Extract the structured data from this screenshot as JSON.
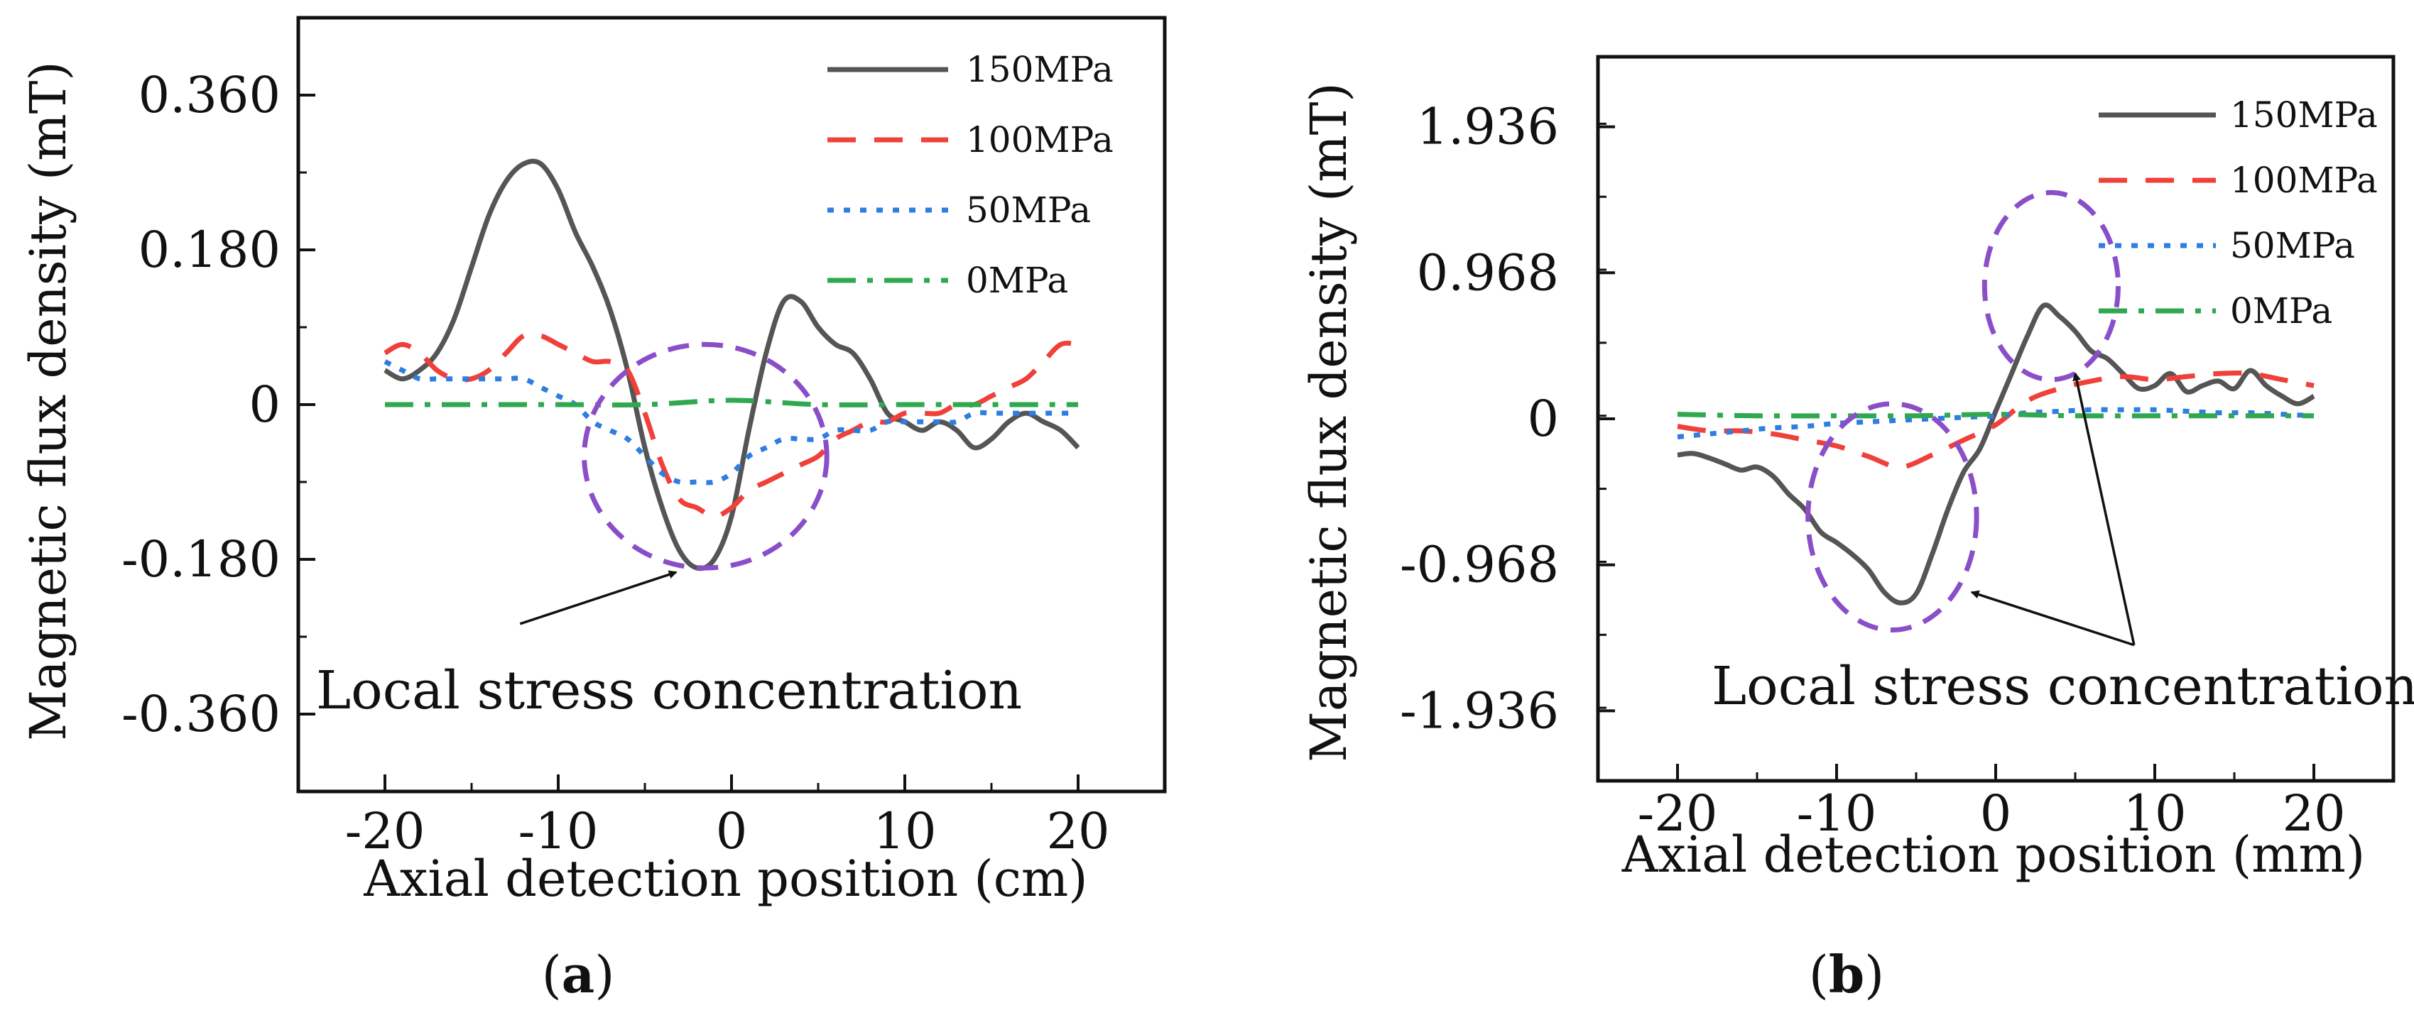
{
  "panels": [
    {
      "tag_open": "(",
      "tag_letter": "a",
      "tag_close": ")",
      "annotation": "Local stress concentration"
    },
    {
      "tag_open": "(",
      "tag_letter": "b",
      "tag_close": ")",
      "annotation": "Local stress concentration"
    }
  ],
  "colors": {
    "150MPa": "#555555",
    "100MPa": "#f0403a",
    "50MPa": "#2f7de1",
    "0MPa": "#2fa84f",
    "circle": "#8a4fc8"
  },
  "chart_data": [
    {
      "type": "line",
      "title": "",
      "xlabel": "Axial detection position (cm)",
      "ylabel": "Magnetic flux density (mT)",
      "xlim": [
        -25,
        25
      ],
      "ylim": [
        -0.45,
        0.45
      ],
      "xticks": [
        -20,
        -10,
        0,
        10,
        20
      ],
      "xtick_labels": [
        "-20",
        "-10",
        "0",
        "10",
        "20"
      ],
      "yticks": [
        0.36,
        0.18,
        0,
        -0.18,
        -0.36
      ],
      "ytick_labels": [
        "0.360",
        "0.180",
        "0",
        "-0.180",
        "-0.360"
      ],
      "grid": false,
      "legend": "top-right",
      "annotation_circle": {
        "center": [
          -1.5,
          -0.06
        ],
        "radius_x": 7,
        "radius_y": 0.13
      },
      "annotation_arrow": {
        "from": [
          -12.2,
          -0.255
        ],
        "to": [
          -3.2,
          -0.195
        ]
      },
      "series": [
        {
          "name": "150MPa",
          "style": "solid",
          "x": [
            -20,
            -19,
            -18,
            -17,
            -16,
            -15,
            -14,
            -13,
            -12,
            -11,
            -10,
            -9,
            -8,
            -7,
            -6,
            -5,
            -4,
            -3,
            -2,
            -1,
            0,
            1,
            2,
            3,
            4,
            5,
            6,
            7,
            8,
            9,
            10,
            11,
            12,
            13,
            14,
            15,
            16,
            17,
            18,
            19,
            20
          ],
          "y": [
            0.04,
            0.03,
            0.04,
            0.06,
            0.1,
            0.16,
            0.22,
            0.26,
            0.28,
            0.28,
            0.25,
            0.2,
            0.16,
            0.11,
            0.04,
            -0.05,
            -0.12,
            -0.17,
            -0.19,
            -0.18,
            -0.13,
            -0.03,
            0.06,
            0.12,
            0.12,
            0.09,
            0.07,
            0.06,
            0.03,
            -0.01,
            -0.02,
            -0.03,
            -0.02,
            -0.03,
            -0.05,
            -0.04,
            -0.02,
            -0.01,
            -0.02,
            -0.03,
            -0.05
          ]
        },
        {
          "name": "100MPa",
          "style": "dashed",
          "x": [
            -20,
            -19,
            -18,
            -17,
            -16,
            -15,
            -14,
            -13,
            -12,
            -11,
            -10,
            -9,
            -8,
            -7,
            -6,
            -5,
            -4,
            -3,
            -2,
            -1,
            0,
            1,
            2,
            3,
            4,
            5,
            6,
            7,
            8,
            9,
            10,
            11,
            12,
            13,
            14,
            15,
            16,
            17,
            18,
            19,
            20
          ],
          "y": [
            0.06,
            0.07,
            0.06,
            0.04,
            0.03,
            0.03,
            0.04,
            0.06,
            0.08,
            0.08,
            0.07,
            0.06,
            0.05,
            0.05,
            0.04,
            -0.01,
            -0.07,
            -0.11,
            -0.12,
            -0.13,
            -0.12,
            -0.1,
            -0.09,
            -0.08,
            -0.07,
            -0.06,
            -0.04,
            -0.03,
            -0.02,
            -0.02,
            -0.01,
            -0.01,
            -0.01,
            0.0,
            0.0,
            0.01,
            0.02,
            0.03,
            0.05,
            0.07,
            0.07
          ]
        },
        {
          "name": "50MPa",
          "style": "dotted",
          "x": [
            -20,
            -19,
            -18,
            -17,
            -16,
            -15,
            -14,
            -13,
            -12,
            -11,
            -10,
            -9,
            -8,
            -7,
            -6,
            -5,
            -4,
            -3,
            -2,
            -1,
            0,
            1,
            2,
            3,
            4,
            5,
            6,
            7,
            8,
            9,
            10,
            11,
            12,
            13,
            14,
            15,
            16,
            17,
            18,
            19,
            20
          ],
          "y": [
            0.05,
            0.04,
            0.03,
            0.03,
            0.03,
            0.03,
            0.03,
            0.03,
            0.03,
            0.02,
            0.01,
            0.0,
            -0.02,
            -0.03,
            -0.04,
            -0.06,
            -0.08,
            -0.09,
            -0.09,
            -0.09,
            -0.08,
            -0.06,
            -0.05,
            -0.04,
            -0.04,
            -0.04,
            -0.03,
            -0.03,
            -0.03,
            -0.02,
            -0.02,
            -0.02,
            -0.02,
            -0.02,
            -0.01,
            -0.01,
            -0.01,
            -0.01,
            -0.01,
            -0.01,
            -0.01
          ]
        },
        {
          "name": "0MPa",
          "style": "dashdot",
          "x": [
            -20,
            -15,
            -10,
            -5,
            0,
            5,
            10,
            15,
            20
          ],
          "y": [
            0.0,
            0.0,
            0.0,
            0.0,
            0.005,
            0.0,
            0.0,
            0.0,
            0.0
          ]
        }
      ]
    },
    {
      "type": "line",
      "title": "",
      "xlabel": "Axial detection position (mm)",
      "ylabel": "Magnetic flux density (mT)",
      "xlim": [
        -25,
        25
      ],
      "ylim": [
        -2.4,
        2.4
      ],
      "xticks": [
        -20,
        -10,
        0,
        10,
        20
      ],
      "xtick_labels": [
        "-20",
        "-10",
        "0",
        "10",
        "20"
      ],
      "yticks": [
        1.936,
        0.968,
        0,
        -0.968,
        -1.936
      ],
      "ytick_labels": [
        "1.936",
        "0.968",
        "0",
        "-0.968",
        "-1.936"
      ],
      "grid": false,
      "legend": "top-right",
      "annotation_circles": [
        {
          "center": [
            -6.5,
            -0.65
          ],
          "radius_x": 5.3,
          "radius_y": 0.75
        },
        {
          "center": [
            3.5,
            0.88
          ],
          "radius_x": 4.2,
          "radius_y": 0.62
        }
      ],
      "annotation_arrows": [
        {
          "from": [
            8.7,
            -1.5
          ],
          "to": [
            -1.5,
            -1.15
          ]
        },
        {
          "from": [
            8.7,
            -1.5
          ],
          "to": [
            5.0,
            0.3
          ]
        }
      ],
      "series": [
        {
          "name": "150MPa",
          "style": "solid",
          "x": [
            -20,
            -19,
            -18,
            -17,
            -16,
            -15,
            -14,
            -13,
            -12,
            -11,
            -10,
            -9,
            -8,
            -7,
            -6,
            -5,
            -4,
            -3,
            -2,
            -1,
            0,
            1,
            2,
            3,
            4,
            5,
            6,
            7,
            8,
            9,
            10,
            11,
            12,
            13,
            14,
            15,
            16,
            17,
            18,
            19,
            20
          ],
          "y": [
            -0.24,
            -0.23,
            -0.26,
            -0.3,
            -0.34,
            -0.32,
            -0.38,
            -0.5,
            -0.6,
            -0.75,
            -0.82,
            -0.9,
            -1.0,
            -1.15,
            -1.22,
            -1.16,
            -0.9,
            -0.6,
            -0.35,
            -0.2,
            0.05,
            0.3,
            0.55,
            0.75,
            0.68,
            0.58,
            0.45,
            0.4,
            0.3,
            0.2,
            0.22,
            0.3,
            0.18,
            0.22,
            0.25,
            0.2,
            0.32,
            0.22,
            0.15,
            0.1,
            0.15
          ]
        },
        {
          "name": "100MPa",
          "style": "dashed",
          "x": [
            -20,
            -18,
            -16,
            -14,
            -12,
            -10,
            -8,
            -6,
            -4,
            -2,
            0,
            2,
            4,
            6,
            8,
            10,
            12,
            14,
            16,
            18,
            20
          ],
          "y": [
            -0.05,
            -0.08,
            -0.08,
            -0.1,
            -0.14,
            -0.18,
            -0.25,
            -0.32,
            -0.24,
            -0.14,
            -0.04,
            0.12,
            0.2,
            0.25,
            0.28,
            0.26,
            0.28,
            0.3,
            0.3,
            0.26,
            0.22
          ]
        },
        {
          "name": "50MPa",
          "style": "dotted",
          "x": [
            -20,
            -18,
            -16,
            -14,
            -12,
            -10,
            -8,
            -6,
            -4,
            -2,
            0,
            2,
            4,
            6,
            8,
            10,
            12,
            14,
            16,
            18,
            20
          ],
          "y": [
            -0.12,
            -0.1,
            -0.08,
            -0.06,
            -0.05,
            -0.03,
            -0.02,
            -0.01,
            0.0,
            0.01,
            0.02,
            0.04,
            0.05,
            0.06,
            0.06,
            0.06,
            0.05,
            0.04,
            0.04,
            0.03,
            0.02
          ]
        },
        {
          "name": "0MPa",
          "style": "dashdot",
          "x": [
            -20,
            -15,
            -10,
            -5,
            0,
            5,
            10,
            15,
            20
          ],
          "y": [
            0.03,
            0.02,
            0.02,
            0.02,
            0.03,
            0.02,
            0.02,
            0.02,
            0.02
          ]
        }
      ]
    }
  ]
}
